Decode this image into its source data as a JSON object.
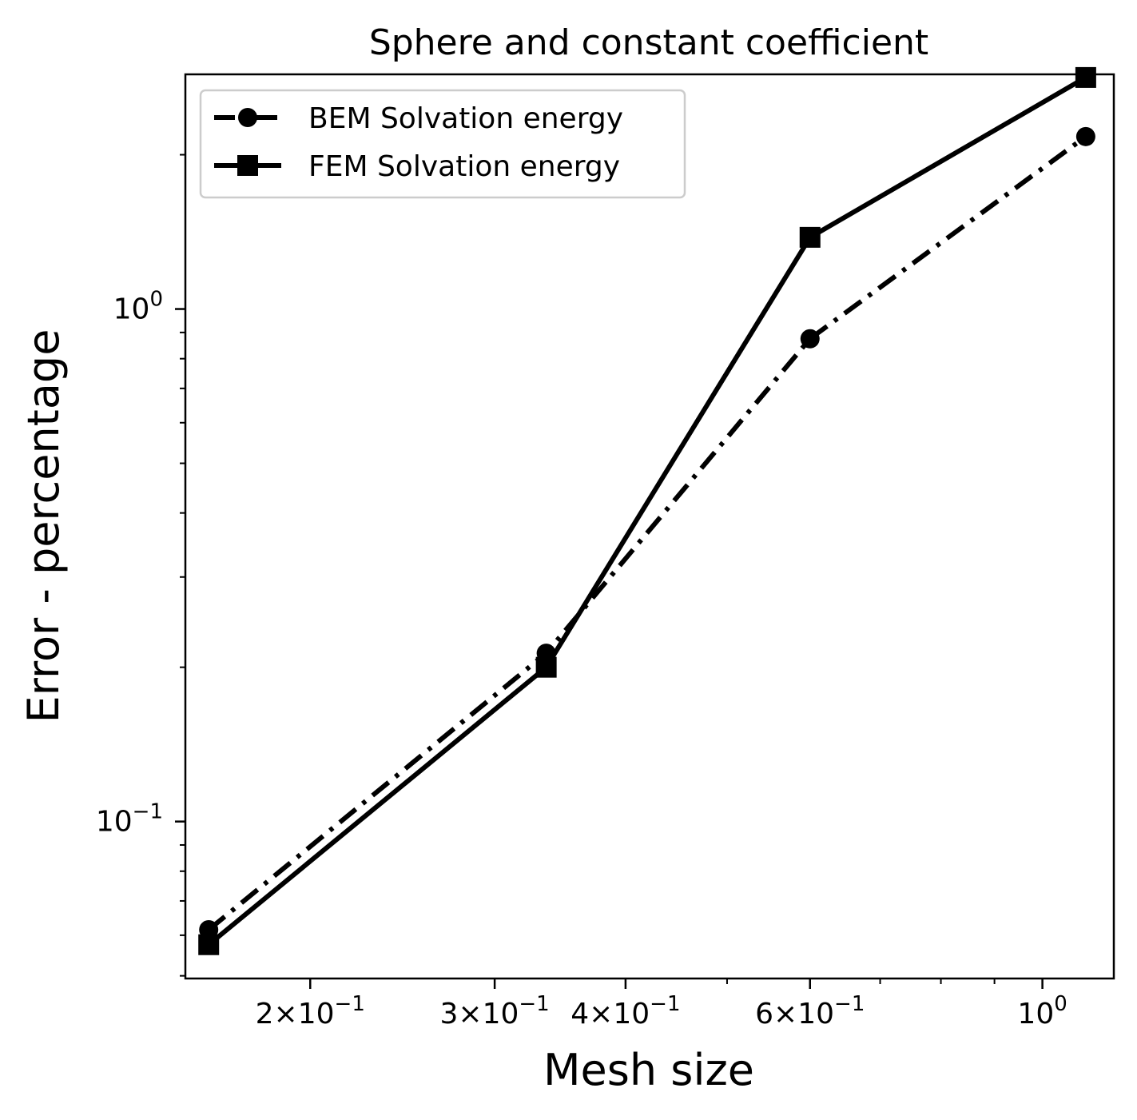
{
  "chart_data": {
    "type": "line",
    "title": "Sphere and constant coefficient",
    "xlabel": "Mesh size",
    "ylabel": "Error - percentage",
    "x_scale": "log",
    "y_scale": "log",
    "xlim": [
      0.152,
      1.17
    ],
    "ylim": [
      0.0494,
      2.87
    ],
    "grid": false,
    "legend_position": "upper-left",
    "x_major_ticks": [
      {
        "value": 0.2,
        "mantissa": "2",
        "base": "10",
        "exp": "−1"
      },
      {
        "value": 0.3,
        "mantissa": "3",
        "base": "10",
        "exp": "−1"
      },
      {
        "value": 0.4,
        "mantissa": "4",
        "base": "10",
        "exp": "−1"
      },
      {
        "value": 0.6,
        "mantissa": "6",
        "base": "10",
        "exp": "−1"
      },
      {
        "value": 1.0,
        "mantissa": "",
        "base": "10",
        "exp": "0"
      }
    ],
    "x_minor_ticks": [
      0.5,
      0.7,
      0.8,
      0.9
    ],
    "y_major_ticks": [
      {
        "value": 0.1,
        "base": "10",
        "exp": "−1"
      },
      {
        "value": 1.0,
        "base": "10",
        "exp": "0"
      }
    ],
    "y_minor_ticks": [
      0.05,
      0.06,
      0.07,
      0.08,
      0.09,
      0.2,
      0.3,
      0.4,
      0.5,
      0.6,
      0.7,
      0.8,
      0.9,
      2.0
    ],
    "series": [
      {
        "name": "BEM Solvation energy",
        "marker": "circle",
        "linestyle": "dashdot",
        "color": "#000000",
        "x": [
          0.16,
          0.336,
          0.6,
          1.1
        ],
        "y": [
          0.0615,
          0.213,
          0.875,
          2.17
        ]
      },
      {
        "name": "FEM Solvation energy",
        "marker": "square",
        "linestyle": "solid",
        "color": "#000000",
        "x": [
          0.16,
          0.336,
          0.6,
          1.1
        ],
        "y": [
          0.0575,
          0.2,
          1.38,
          2.83
        ]
      }
    ]
  }
}
